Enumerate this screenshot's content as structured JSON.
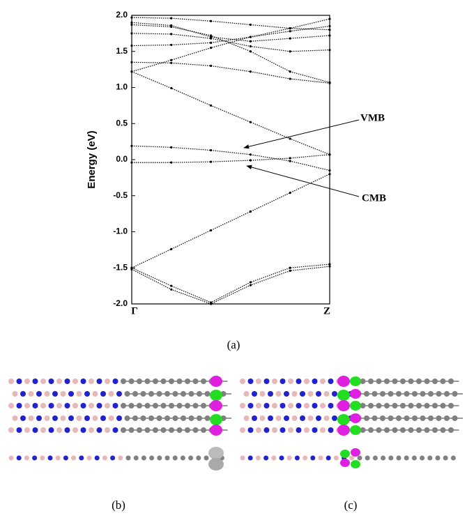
{
  "chart_data": {
    "type": "line",
    "y_label": "Energy (eV)",
    "xlim": [
      0,
      1
    ],
    "xticks": [
      {
        "value": 0,
        "label": "Γ"
      },
      {
        "value": 1,
        "label": "Z"
      }
    ],
    "ylim": [
      -2,
      2
    ],
    "yticks": [
      {
        "value": 2,
        "label": "2.0"
      },
      1.5,
      {
        "value": 1,
        "label": "1.0"
      },
      0.5,
      {
        "value": 0,
        "label": "0.0"
      },
      -0.5,
      {
        "value": -1,
        "label": "-1.0"
      },
      -1.5,
      {
        "value": -2,
        "label": "-2.0"
      }
    ],
    "color": "#000000",
    "x": [
      0,
      0.2,
      0.4,
      0.6,
      0.8,
      1
    ],
    "series": [
      {
        "values": [
          -1.5,
          -1.24,
          -0.98,
          -0.72,
          -0.46,
          -0.2
        ]
      },
      {
        "values": [
          1.22,
          0.99,
          0.75,
          0.52,
          0.29,
          0.07
        ]
      },
      {
        "values": [
          0.19,
          0.17,
          0.13,
          0.07,
          -0.02,
          -0.15
        ]
      },
      {
        "values": [
          -0.04,
          -0.04,
          -0.03,
          -0.01,
          0.02,
          0.07
        ]
      },
      {
        "values": [
          -1.5,
          -1.75,
          -1.98,
          -1.7,
          -1.5,
          -1.45
        ]
      },
      {
        "values": [
          -1.52,
          -1.8,
          -2.0,
          -1.74,
          -1.54,
          -1.48
        ]
      },
      {
        "values": [
          1.35,
          1.34,
          1.3,
          1.22,
          1.12,
          1.06
        ]
      },
      {
        "values": [
          1.22,
          1.38,
          1.55,
          1.7,
          1.78,
          1.85
        ]
      },
      {
        "values": [
          1.58,
          1.59,
          1.62,
          1.7,
          1.82,
          1.95
        ]
      },
      {
        "values": [
          1.75,
          1.74,
          1.68,
          1.57,
          1.5,
          1.52
        ]
      },
      {
        "values": [
          1.9,
          1.86,
          1.7,
          1.64,
          1.68,
          1.72
        ]
      },
      {
        "values": [
          1.97,
          1.96,
          1.92,
          1.87,
          1.82,
          1.8
        ]
      },
      {
        "values": [
          1.87,
          1.84,
          1.72,
          1.5,
          1.22,
          1.07
        ]
      }
    ],
    "annotations": [
      "VMB",
      "CMB"
    ],
    "captions": [
      "(a)",
      "(b)",
      "(c)"
    ]
  }
}
